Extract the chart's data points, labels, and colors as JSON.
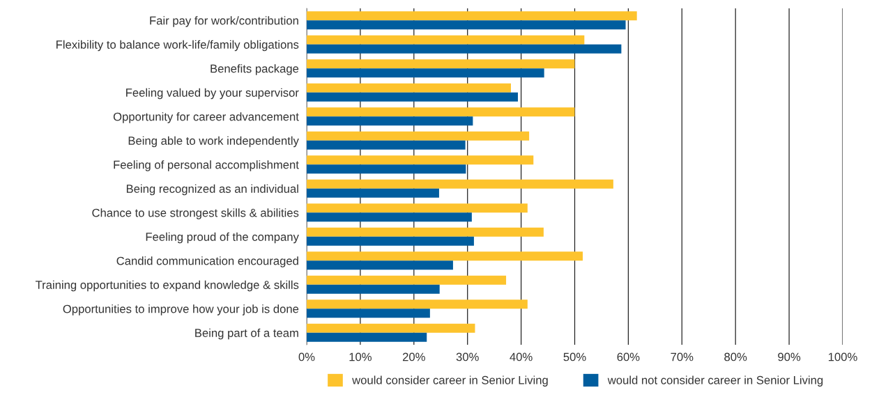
{
  "chart_data": {
    "type": "bar",
    "orientation": "horizontal",
    "categories": [
      "Fair pay for work/contribution",
      "Flexibility to balance work-life/family obligations",
      "Benefits package",
      "Feeling valued by your supervisor",
      "Opportunity for career advancement",
      "Being able to work independently",
      "Feeling of personal accomplishment",
      "Being recognized as an individual",
      "Chance to use strongest skills & abilities",
      "Feeling proud of the company",
      "Candid communication encouraged",
      "Training opportunities to expand knowledge & skills",
      "Opportunities to improve how your job is done",
      "Being part of a team"
    ],
    "series": [
      {
        "name": "would consider career in Senior Living",
        "color": "#fdc32d",
        "values": [
          61.6,
          51.8,
          50,
          38.1,
          50,
          41.5,
          42.3,
          57.2,
          41.2,
          44.2,
          51.5,
          37.2,
          41.2,
          31.4
        ]
      },
      {
        "name": "would not consider career in Senior Living",
        "color": "#005d9e",
        "values": [
          59.5,
          58.7,
          44.3,
          39.4,
          31,
          29.6,
          29.7,
          24.7,
          30.8,
          31.2,
          27.3,
          24.8,
          23,
          22.4
        ]
      }
    ],
    "xlim": [
      0,
      100
    ],
    "xticks": [
      {
        "value": 0,
        "label": "0%"
      },
      {
        "value": 10,
        "label": "10%"
      },
      {
        "value": 20,
        "label": "20%"
      },
      {
        "value": 30,
        "label": "30%"
      },
      {
        "value": 40,
        "label": "40%"
      },
      {
        "value": 50,
        "label": "50%"
      },
      {
        "value": 60,
        "label": "60%"
      },
      {
        "value": 70,
        "label": "70%"
      },
      {
        "value": 80,
        "label": "80%"
      },
      {
        "value": 90,
        "label": "90%"
      },
      {
        "value": 100,
        "label": "100%"
      }
    ],
    "grid": "x",
    "legend": "bottom"
  }
}
